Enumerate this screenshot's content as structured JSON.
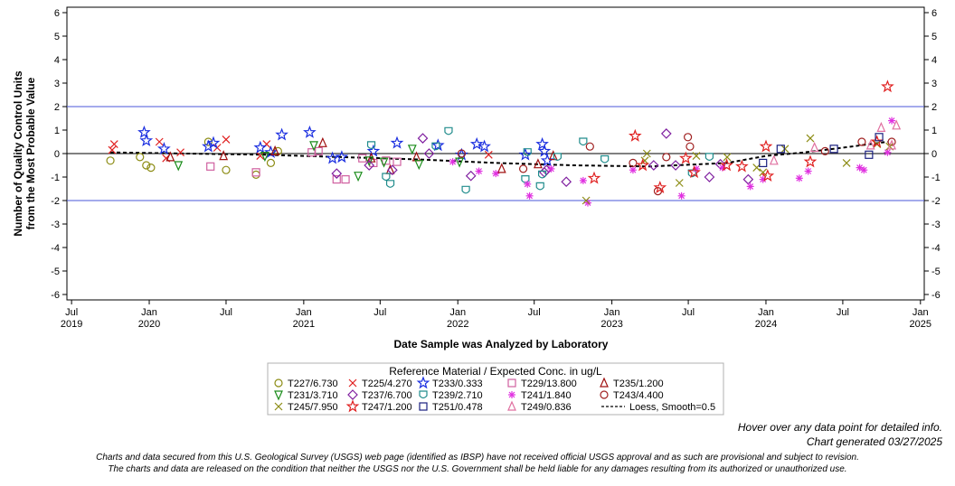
{
  "chart_data": {
    "type": "scatter",
    "ylabel_line1": "Number of Quality Control Units",
    "ylabel_line2": "from the Most Probable Value",
    "xlabel": "Date Sample was Analyzed by Laboratory",
    "ylim": [
      -6,
      6
    ],
    "y_ticks": [
      -6,
      -5,
      -4,
      -3,
      -2,
      -1,
      0,
      1,
      2,
      3,
      4,
      5,
      6
    ],
    "x_ticks": [
      {
        "date": "2019-07-01",
        "label": "Jul",
        "year": "2019"
      },
      {
        "date": "2020-01-01",
        "label": "Jan",
        "year": "2020"
      },
      {
        "date": "2020-07-01",
        "label": "Jul",
        "year": ""
      },
      {
        "date": "2021-01-01",
        "label": "Jan",
        "year": "2021"
      },
      {
        "date": "2021-07-01",
        "label": "Jul",
        "year": ""
      },
      {
        "date": "2022-01-01",
        "label": "Jan",
        "year": "2022"
      },
      {
        "date": "2022-07-01",
        "label": "Jul",
        "year": ""
      },
      {
        "date": "2023-01-01",
        "label": "Jan",
        "year": "2023"
      },
      {
        "date": "2023-07-01",
        "label": "Jul",
        "year": ""
      },
      {
        "date": "2024-01-01",
        "label": "Jan",
        "year": "2024"
      },
      {
        "date": "2024-07-01",
        "label": "Jul",
        "year": ""
      },
      {
        "date": "2025-01-01",
        "label": "Jan",
        "year": "2025"
      }
    ],
    "xlim": [
      "2019-06-20",
      "2025-01-10"
    ],
    "reference_lines": [
      {
        "y": 2,
        "color": "#4a57d9"
      },
      {
        "y": -2,
        "color": "#4a57d9"
      },
      {
        "y": 0,
        "color": "#000000"
      }
    ],
    "legend_title": "Reference Material / Expected Conc. in ug/L",
    "legend_placement": "bottom",
    "series": [
      {
        "name": "T227/6.730",
        "marker": "circle",
        "color": "#8c8c14",
        "points": [
          [
            "2019-10-01",
            -0.3
          ],
          [
            "2019-12-10",
            -0.15
          ],
          [
            "2019-12-25",
            -0.5
          ],
          [
            "2020-01-05",
            -0.6
          ],
          [
            "2020-05-20",
            0.5
          ],
          [
            "2020-07-01",
            -0.7
          ],
          [
            "2020-09-10",
            -0.9
          ],
          [
            "2020-10-15",
            -0.4
          ],
          [
            "2020-11-01",
            0.1
          ]
        ]
      },
      {
        "name": "T225/4.270",
        "marker": "x",
        "color": "#e02020",
        "points": [
          [
            "2019-10-10",
            0.4
          ],
          [
            "2019-10-05",
            0.15
          ],
          [
            "2020-01-25",
            0.5
          ],
          [
            "2020-02-10",
            -0.2
          ],
          [
            "2020-03-15",
            0.05
          ],
          [
            "2020-06-10",
            0.25
          ],
          [
            "2020-07-01",
            0.6
          ],
          [
            "2020-09-20",
            -0.1
          ],
          [
            "2020-10-05",
            0.4
          ],
          [
            "2022-03-15",
            -0.05
          ]
        ]
      },
      {
        "name": "T233/0.333",
        "marker": "star",
        "color": "#1a2ee0",
        "points": [
          [
            "2019-12-20",
            0.9
          ],
          [
            "2019-12-25",
            0.55
          ],
          [
            "2020-02-05",
            0.2
          ],
          [
            "2020-05-20",
            0.3
          ],
          [
            "2020-06-01",
            0.45
          ],
          [
            "2020-09-20",
            0.25
          ],
          [
            "2020-10-15",
            0.05
          ],
          [
            "2020-11-10",
            0.8
          ],
          [
            "2021-01-15",
            0.9
          ],
          [
            "2021-03-10",
            -0.2
          ],
          [
            "2021-04-01",
            -0.15
          ],
          [
            "2021-06-15",
            0.1
          ],
          [
            "2021-08-10",
            0.45
          ],
          [
            "2021-11-15",
            0.35
          ],
          [
            "2022-01-10",
            -0.05
          ],
          [
            "2022-02-15",
            0.4
          ],
          [
            "2022-03-05",
            0.3
          ],
          [
            "2022-06-10",
            -0.05
          ],
          [
            "2022-07-20",
            0.4
          ],
          [
            "2022-07-25",
            0.1
          ],
          [
            "2022-08-01",
            -0.3
          ]
        ]
      },
      {
        "name": "T229/13.800",
        "marker": "square",
        "color": "#d060a0",
        "points": [
          [
            "2020-05-25",
            -0.55
          ],
          [
            "2020-09-10",
            -0.8
          ],
          [
            "2021-01-20",
            0.05
          ],
          [
            "2021-02-05",
            0.1
          ],
          [
            "2021-03-20",
            -1.1
          ],
          [
            "2021-04-10",
            -1.1
          ],
          [
            "2021-05-20",
            -0.2
          ],
          [
            "2021-06-15",
            -0.4
          ],
          [
            "2021-07-15",
            -0.3
          ],
          [
            "2021-08-10",
            -0.35
          ]
        ]
      },
      {
        "name": "T235/1.200",
        "marker": "triangle",
        "color": "#a01010",
        "points": [
          [
            "2020-02-20",
            -0.15
          ],
          [
            "2020-06-25",
            -0.1
          ],
          [
            "2020-10-25",
            0.1
          ],
          [
            "2021-02-15",
            0.45
          ],
          [
            "2021-06-10",
            -0.2
          ],
          [
            "2021-07-25",
            -0.7
          ],
          [
            "2021-09-25",
            -0.15
          ],
          [
            "2022-04-15",
            -0.65
          ],
          [
            "2022-07-10",
            -0.45
          ],
          [
            "2022-08-15",
            -0.1
          ]
        ]
      },
      {
        "name": "T231/3.710",
        "marker": "triangle-down",
        "color": "#1a8c1a",
        "points": [
          [
            "2020-03-10",
            -0.5
          ],
          [
            "2020-10-01",
            -0.1
          ],
          [
            "2021-01-25",
            0.35
          ],
          [
            "2021-05-10",
            -0.95
          ],
          [
            "2021-06-05",
            -0.3
          ],
          [
            "2021-07-10",
            -0.35
          ],
          [
            "2021-09-15",
            0.2
          ],
          [
            "2021-10-01",
            -0.45
          ],
          [
            "2022-01-05",
            -0.35
          ]
        ]
      },
      {
        "name": "T237/6.700",
        "marker": "diamond",
        "color": "#8020a0",
        "points": [
          [
            "2021-03-20",
            -0.85
          ],
          [
            "2021-06-05",
            -0.5
          ],
          [
            "2021-07-30",
            -0.7
          ],
          [
            "2021-10-10",
            0.65
          ],
          [
            "2021-10-25",
            0.0
          ],
          [
            "2022-02-01",
            -0.95
          ],
          [
            "2022-07-25",
            -0.8
          ],
          [
            "2022-07-30",
            -0.7
          ],
          [
            "2022-09-15",
            -1.2
          ],
          [
            "2023-04-10",
            -0.5
          ],
          [
            "2023-05-10",
            0.85
          ],
          [
            "2023-06-01",
            -0.5
          ],
          [
            "2023-08-20",
            -1.0
          ],
          [
            "2023-09-15",
            -0.45
          ],
          [
            "2023-11-20",
            -1.1
          ]
        ]
      },
      {
        "name": "T239/2.710",
        "marker": "shield",
        "color": "#208c8c",
        "points": [
          [
            "2021-06-10",
            0.35
          ],
          [
            "2021-07-15",
            -1.0
          ],
          [
            "2021-07-25",
            -1.3
          ],
          [
            "2021-11-10",
            0.3
          ],
          [
            "2021-12-10",
            0.95
          ],
          [
            "2022-01-20",
            -1.55
          ],
          [
            "2022-06-10",
            -1.1
          ],
          [
            "2022-06-15",
            0.05
          ],
          [
            "2022-07-15",
            -1.4
          ],
          [
            "2022-07-20",
            -0.9
          ],
          [
            "2022-08-25",
            -0.15
          ],
          [
            "2022-10-25",
            0.5
          ],
          [
            "2022-12-15",
            -0.25
          ],
          [
            "2023-07-10",
            -0.85
          ],
          [
            "2023-08-20",
            -0.15
          ]
        ]
      },
      {
        "name": "T241/1.840",
        "marker": "asterisk",
        "color": "#e030e0",
        "points": [
          [
            "2021-12-20",
            -0.35
          ],
          [
            "2022-02-20",
            -0.75
          ],
          [
            "2022-04-01",
            -0.85
          ],
          [
            "2022-06-15",
            -1.3
          ],
          [
            "2022-06-20",
            -1.8
          ],
          [
            "2022-08-10",
            -0.65
          ],
          [
            "2022-10-25",
            -1.15
          ],
          [
            "2022-11-05",
            -2.1
          ],
          [
            "2023-02-20",
            -0.7
          ],
          [
            "2023-06-15",
            -1.8
          ],
          [
            "2023-07-20",
            -0.65
          ],
          [
            "2023-09-20",
            -0.6
          ],
          [
            "2023-11-25",
            -1.4
          ],
          [
            "2023-12-25",
            -1.1
          ],
          [
            "2024-03-20",
            -1.05
          ],
          [
            "2024-04-10",
            -0.75
          ],
          [
            "2024-08-20",
            -0.7
          ],
          [
            "2024-08-10",
            -0.6
          ],
          [
            "2024-10-15",
            0.05
          ],
          [
            "2024-10-25",
            1.4
          ]
        ]
      },
      {
        "name": "T243/4.400",
        "marker": "circle",
        "color": "#a02020",
        "points": [
          [
            "2022-01-10",
            0.0
          ],
          [
            "2022-06-05",
            -0.65
          ],
          [
            "2022-11-10",
            0.3
          ],
          [
            "2023-02-20",
            -0.4
          ],
          [
            "2023-04-20",
            -1.6
          ],
          [
            "2023-05-10",
            -0.15
          ],
          [
            "2023-06-30",
            0.7
          ],
          [
            "2023-07-05",
            0.3
          ],
          [
            "2024-05-20",
            0.1
          ],
          [
            "2024-08-15",
            0.5
          ],
          [
            "2024-10-25",
            0.5
          ]
        ]
      },
      {
        "name": "T245/7.950",
        "marker": "x",
        "color": "#8c8c14",
        "points": [
          [
            "2022-11-01",
            -2.0
          ],
          [
            "2023-03-20",
            -0.3
          ],
          [
            "2023-03-25",
            0.0
          ],
          [
            "2023-06-10",
            -1.25
          ],
          [
            "2023-07-20",
            -0.1
          ],
          [
            "2023-10-01",
            -0.15
          ],
          [
            "2023-12-10",
            -0.6
          ],
          [
            "2023-12-25",
            -0.8
          ],
          [
            "2024-02-15",
            0.2
          ],
          [
            "2024-04-15",
            0.65
          ],
          [
            "2024-07-10",
            -0.4
          ],
          [
            "2024-09-20",
            0.4
          ],
          [
            "2024-10-20",
            0.3
          ]
        ]
      },
      {
        "name": "T247/1.200",
        "marker": "star",
        "color": "#e02020",
        "points": [
          [
            "2022-11-20",
            -1.05
          ],
          [
            "2023-02-25",
            0.75
          ],
          [
            "2023-03-15",
            -0.5
          ],
          [
            "2023-04-25",
            -1.45
          ],
          [
            "2023-06-25",
            -0.2
          ],
          [
            "2023-07-15",
            -0.8
          ],
          [
            "2023-09-30",
            -0.5
          ],
          [
            "2023-11-05",
            -0.55
          ],
          [
            "2024-01-01",
            0.3
          ],
          [
            "2024-01-05",
            -0.95
          ],
          [
            "2024-04-15",
            -0.35
          ],
          [
            "2024-09-20",
            0.5
          ],
          [
            "2024-10-15",
            2.85
          ]
        ]
      },
      {
        "name": "T251/0.478",
        "marker": "square",
        "color": "#1a2080",
        "points": [
          [
            "2023-12-25",
            -0.4
          ],
          [
            "2024-02-05",
            0.2
          ],
          [
            "2024-06-10",
            0.2
          ],
          [
            "2024-09-01",
            -0.05
          ],
          [
            "2024-09-25",
            0.7
          ]
        ]
      },
      {
        "name": "T249/0.836",
        "marker": "triangle",
        "color": "#e070a0",
        "points": [
          [
            "2024-01-20",
            -0.3
          ],
          [
            "2024-04-25",
            0.25
          ],
          [
            "2024-09-05",
            0.35
          ],
          [
            "2024-09-30",
            1.1
          ],
          [
            "2024-11-05",
            1.2
          ],
          [
            "2024-10-25",
            0.35
          ]
        ]
      },
      {
        "name": "Loess, Smooth=0.5",
        "marker": "dash-line",
        "color": "#000000",
        "points": [
          [
            "2019-10-01",
            0.05
          ],
          [
            "2020-04-01",
            0.0
          ],
          [
            "2020-10-01",
            -0.05
          ],
          [
            "2021-04-01",
            -0.15
          ],
          [
            "2021-10-01",
            -0.25
          ],
          [
            "2022-04-01",
            -0.4
          ],
          [
            "2022-10-01",
            -0.5
          ],
          [
            "2023-04-01",
            -0.55
          ],
          [
            "2023-10-01",
            -0.4
          ],
          [
            "2024-01-01",
            -0.1
          ],
          [
            "2024-04-01",
            0.05
          ],
          [
            "2024-07-01",
            0.25
          ],
          [
            "2024-10-15",
            0.5
          ]
        ]
      }
    ]
  },
  "notes": {
    "hover": "Hover over any data point for detailed info.",
    "generated": "Chart generated 03/27/2025",
    "disclaimer_line1": "Charts and data secured from this U.S. Geological Survey (USGS) web page (identified as IBSP) have not received official USGS approval and as such are provisional and subject to revision.",
    "disclaimer_line2": "The charts and data are released on the condition that neither the USGS nor the U.S. Government shall be held liable for any damages resulting from its authorized or unauthorized use."
  }
}
